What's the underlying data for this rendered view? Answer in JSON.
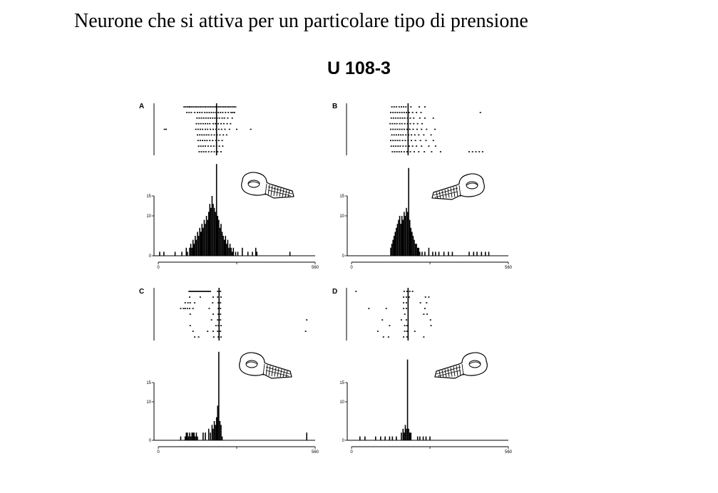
{
  "header": {
    "title": "Neurone che si attiva per un particolare tipo di prensione",
    "unit": "U 108-3"
  },
  "chart_data": [
    {
      "type": "bar",
      "panel": "A",
      "x_ticks": [
        "0",
        "560"
      ],
      "y_ticks": [
        "0",
        "10",
        "15"
      ],
      "xlim": [
        0,
        560
      ],
      "ylim": [
        0,
        15
      ],
      "alignment_time": 208,
      "raster_trials": [
        [
          92,
          98,
          104,
          110,
          114,
          120,
          126,
          132,
          138,
          144,
          150,
          156,
          162,
          168,
          174,
          180,
          186,
          192,
          198,
          204,
          210,
          216,
          222,
          228,
          234,
          240,
          246,
          252,
          258,
          264,
          270,
          276
        ],
        [
          102,
          110,
          118,
          130,
          140,
          148,
          156,
          166,
          174,
          182,
          190,
          198,
          206,
          214,
          222,
          230,
          240,
          250,
          260,
          266,
          272
        ],
        [
          138,
          146,
          154,
          162,
          170,
          178,
          186,
          194,
          202,
          210,
          218,
          228,
          236,
          248,
          264
        ],
        [
          136,
          144,
          152,
          160,
          168,
          176,
          184,
          196,
          204,
          214,
          224,
          234,
          246,
          258
        ],
        [
          22,
          28,
          134,
          142,
          150,
          158,
          168,
          176,
          186,
          196,
          206,
          216,
          226,
          238,
          254,
          280,
          330
        ],
        [
          140,
          148,
          156,
          164,
          172,
          180,
          190,
          200,
          210,
          220,
          232,
          244
        ],
        [
          142,
          150,
          158,
          166,
          174,
          184,
          194,
          206,
          216,
          228
        ],
        [
          144,
          152,
          160,
          168,
          178,
          188,
          198,
          208,
          218,
          230
        ],
        [
          146,
          154,
          162,
          170,
          180,
          190,
          200,
          212,
          224
        ]
      ],
      "histogram_bins": [
        {
          "x": 5,
          "y": 1
        },
        {
          "x": 20,
          "y": 1
        },
        {
          "x": 60,
          "y": 1
        },
        {
          "x": 84,
          "y": 1
        },
        {
          "x": 100,
          "y": 2
        },
        {
          "x": 104,
          "y": 1
        },
        {
          "x": 112,
          "y": 2
        },
        {
          "x": 116,
          "y": 3
        },
        {
          "x": 120,
          "y": 2
        },
        {
          "x": 124,
          "y": 4
        },
        {
          "x": 128,
          "y": 3
        },
        {
          "x": 132,
          "y": 5
        },
        {
          "x": 136,
          "y": 4
        },
        {
          "x": 140,
          "y": 6
        },
        {
          "x": 144,
          "y": 5
        },
        {
          "x": 148,
          "y": 7
        },
        {
          "x": 152,
          "y": 6
        },
        {
          "x": 156,
          "y": 8
        },
        {
          "x": 160,
          "y": 7
        },
        {
          "x": 164,
          "y": 9
        },
        {
          "x": 168,
          "y": 8
        },
        {
          "x": 172,
          "y": 10
        },
        {
          "x": 176,
          "y": 9
        },
        {
          "x": 180,
          "y": 11
        },
        {
          "x": 184,
          "y": 13
        },
        {
          "x": 188,
          "y": 12
        },
        {
          "x": 192,
          "y": 15
        },
        {
          "x": 196,
          "y": 13
        },
        {
          "x": 200,
          "y": 12
        },
        {
          "x": 204,
          "y": 11
        },
        {
          "x": 208,
          "y": 23
        },
        {
          "x": 212,
          "y": 10
        },
        {
          "x": 216,
          "y": 9
        },
        {
          "x": 220,
          "y": 7
        },
        {
          "x": 224,
          "y": 8
        },
        {
          "x": 228,
          "y": 6
        },
        {
          "x": 232,
          "y": 5
        },
        {
          "x": 236,
          "y": 4
        },
        {
          "x": 240,
          "y": 5
        },
        {
          "x": 244,
          "y": 3
        },
        {
          "x": 248,
          "y": 4
        },
        {
          "x": 252,
          "y": 2
        },
        {
          "x": 256,
          "y": 3
        },
        {
          "x": 260,
          "y": 2
        },
        {
          "x": 264,
          "y": 1
        },
        {
          "x": 268,
          "y": 2
        },
        {
          "x": 276,
          "y": 1
        },
        {
          "x": 284,
          "y": 1
        },
        {
          "x": 300,
          "y": 2
        },
        {
          "x": 320,
          "y": 1
        },
        {
          "x": 336,
          "y": 1
        },
        {
          "x": 348,
          "y": 2
        },
        {
          "x": 352,
          "y": 1
        },
        {
          "x": 470,
          "y": 1
        }
      ],
      "icon": "hand-grasp-icon"
    },
    {
      "type": "bar",
      "panel": "B",
      "x_ticks": [
        "0",
        "560"
      ],
      "y_ticks": [
        "0",
        "10",
        "15"
      ],
      "xlim": [
        0,
        560
      ],
      "ylim": [
        0,
        15
      ],
      "alignment_time": 202,
      "raster_trials": [
        [
          144,
          152,
          160,
          170,
          178,
          186,
          194,
          212,
          242,
          262
        ],
        [
          140,
          148,
          156,
          164,
          172,
          180,
          188,
          196,
          206,
          218,
          232,
          248,
          460
        ],
        [
          142,
          150,
          158,
          166,
          174,
          182,
          190,
          200,
          210,
          222,
          244,
          262,
          292
        ],
        [
          138,
          146,
          154,
          162,
          172,
          180,
          190,
          200,
          210,
          222,
          236,
          252
        ],
        [
          140,
          148,
          156,
          164,
          172,
          180,
          188,
          198,
          208,
          220,
          234,
          250,
          268,
          298
        ],
        [
          144,
          152,
          160,
          168,
          176,
          184,
          194,
          204,
          214,
          226,
          240,
          258,
          284
        ],
        [
          140,
          148,
          156,
          164,
          172,
          182,
          192,
          202,
          214,
          228,
          246,
          266,
          292
        ],
        [
          142,
          150,
          158,
          166,
          174,
          184,
          194,
          206,
          218,
          232,
          250,
          276,
          300
        ],
        [
          146,
          154,
          162,
          170,
          178,
          188,
          198,
          210,
          224,
          240,
          260,
          286,
          318,
          420,
          432,
          444,
          456,
          468
        ]
      ],
      "histogram_bins": [
        {
          "x": 140,
          "y": 2
        },
        {
          "x": 144,
          "y": 3
        },
        {
          "x": 148,
          "y": 4
        },
        {
          "x": 152,
          "y": 5
        },
        {
          "x": 156,
          "y": 6
        },
        {
          "x": 160,
          "y": 7
        },
        {
          "x": 164,
          "y": 8
        },
        {
          "x": 168,
          "y": 9
        },
        {
          "x": 172,
          "y": 10
        },
        {
          "x": 176,
          "y": 8
        },
        {
          "x": 180,
          "y": 10
        },
        {
          "x": 184,
          "y": 9
        },
        {
          "x": 188,
          "y": 11
        },
        {
          "x": 192,
          "y": 10
        },
        {
          "x": 196,
          "y": 12
        },
        {
          "x": 200,
          "y": 11
        },
        {
          "x": 204,
          "y": 22
        },
        {
          "x": 208,
          "y": 9
        },
        {
          "x": 212,
          "y": 7
        },
        {
          "x": 216,
          "y": 6
        },
        {
          "x": 220,
          "y": 5
        },
        {
          "x": 224,
          "y": 4
        },
        {
          "x": 228,
          "y": 3
        },
        {
          "x": 232,
          "y": 3
        },
        {
          "x": 236,
          "y": 2
        },
        {
          "x": 240,
          "y": 2
        },
        {
          "x": 244,
          "y": 1
        },
        {
          "x": 252,
          "y": 1
        },
        {
          "x": 262,
          "y": 1
        },
        {
          "x": 276,
          "y": 2
        },
        {
          "x": 290,
          "y": 1
        },
        {
          "x": 300,
          "y": 1
        },
        {
          "x": 312,
          "y": 1
        },
        {
          "x": 330,
          "y": 1
        },
        {
          "x": 346,
          "y": 1
        },
        {
          "x": 360,
          "y": 1
        },
        {
          "x": 420,
          "y": 1
        },
        {
          "x": 436,
          "y": 1
        },
        {
          "x": 448,
          "y": 1
        },
        {
          "x": 464,
          "y": 1
        },
        {
          "x": 478,
          "y": 1
        },
        {
          "x": 490,
          "y": 1
        }
      ],
      "icon": "hand-grasp-icon"
    },
    {
      "type": "bar",
      "panel": "C",
      "x_ticks": [
        "0",
        "560"
      ],
      "y_ticks": [
        "0",
        "10",
        "15"
      ],
      "xlim": [
        0,
        560
      ],
      "ylim": [
        0,
        15
      ],
      "alignment_time": 217,
      "raster_trials": [
        [
          110,
          114,
          118,
          122,
          126,
          130,
          134,
          138,
          142,
          146,
          150,
          154,
          158,
          162,
          166,
          170,
          174,
          178,
          182,
          186,
          212,
          222
        ],
        [
          112,
          150,
          196,
          212,
          224
        ],
        [
          96,
          106,
          114,
          130,
          194,
          214,
          222
        ],
        [
          80,
          90,
          96,
          104,
          112,
          124,
          182,
          214,
          222
        ],
        [
          114,
          196,
          214,
          222
        ],
        [
          190,
          212,
          222,
          530
        ],
        [
          114,
          206,
          214,
          224
        ],
        [
          124,
          176,
          196,
          212,
          222,
          526
        ],
        [
          130,
          144,
          198,
          214,
          224
        ]
      ],
      "histogram_bins": [
        {
          "x": 80,
          "y": 1
        },
        {
          "x": 96,
          "y": 1
        },
        {
          "x": 100,
          "y": 2
        },
        {
          "x": 104,
          "y": 2
        },
        {
          "x": 108,
          "y": 1
        },
        {
          "x": 112,
          "y": 2
        },
        {
          "x": 116,
          "y": 1
        },
        {
          "x": 120,
          "y": 2
        },
        {
          "x": 124,
          "y": 2
        },
        {
          "x": 128,
          "y": 2
        },
        {
          "x": 132,
          "y": 1
        },
        {
          "x": 136,
          "y": 2
        },
        {
          "x": 140,
          "y": 1
        },
        {
          "x": 160,
          "y": 2
        },
        {
          "x": 168,
          "y": 2
        },
        {
          "x": 180,
          "y": 3
        },
        {
          "x": 186,
          "y": 2
        },
        {
          "x": 192,
          "y": 4
        },
        {
          "x": 196,
          "y": 3
        },
        {
          "x": 200,
          "y": 5
        },
        {
          "x": 204,
          "y": 4
        },
        {
          "x": 208,
          "y": 6
        },
        {
          "x": 212,
          "y": 9
        },
        {
          "x": 216,
          "y": 23
        },
        {
          "x": 220,
          "y": 5
        },
        {
          "x": 224,
          "y": 4
        },
        {
          "x": 228,
          "y": 1
        },
        {
          "x": 530,
          "y": 2
        }
      ],
      "icon": "hand-grasp-icon"
    },
    {
      "type": "bar",
      "panel": "D",
      "x_ticks": [
        "0",
        "560"
      ],
      "y_ticks": [
        "0",
        "10",
        "15"
      ],
      "xlim": [
        0,
        560
      ],
      "ylim": [
        0,
        15
      ],
      "alignment_time": 202,
      "raster_trials": [
        [
          16,
          188,
          198,
          208,
          218
        ],
        [
          186,
          196,
          206,
          264,
          276
        ],
        [
          186,
          196,
          246,
          268
        ],
        [
          62,
          124,
          186,
          196,
          262
        ],
        [
          190,
          258,
          270
        ],
        [
          110,
          178,
          196,
          282
        ],
        [
          136,
          190,
          198,
          284
        ],
        [
          94,
          190,
          198,
          226
        ],
        [
          114,
          132,
          186,
          198,
          258
        ]
      ],
      "histogram_bins": [
        {
          "x": 30,
          "y": 1
        },
        {
          "x": 48,
          "y": 1
        },
        {
          "x": 86,
          "y": 1
        },
        {
          "x": 104,
          "y": 1
        },
        {
          "x": 120,
          "y": 1
        },
        {
          "x": 136,
          "y": 1
        },
        {
          "x": 146,
          "y": 1
        },
        {
          "x": 160,
          "y": 1
        },
        {
          "x": 178,
          "y": 2
        },
        {
          "x": 184,
          "y": 3
        },
        {
          "x": 188,
          "y": 2
        },
        {
          "x": 192,
          "y": 4
        },
        {
          "x": 196,
          "y": 3
        },
        {
          "x": 200,
          "y": 21
        },
        {
          "x": 204,
          "y": 3
        },
        {
          "x": 208,
          "y": 2
        },
        {
          "x": 212,
          "y": 2
        },
        {
          "x": 236,
          "y": 1
        },
        {
          "x": 244,
          "y": 1
        },
        {
          "x": 256,
          "y": 1
        },
        {
          "x": 266,
          "y": 1
        },
        {
          "x": 280,
          "y": 1
        }
      ],
      "icon": "hand-grasp-icon"
    }
  ]
}
